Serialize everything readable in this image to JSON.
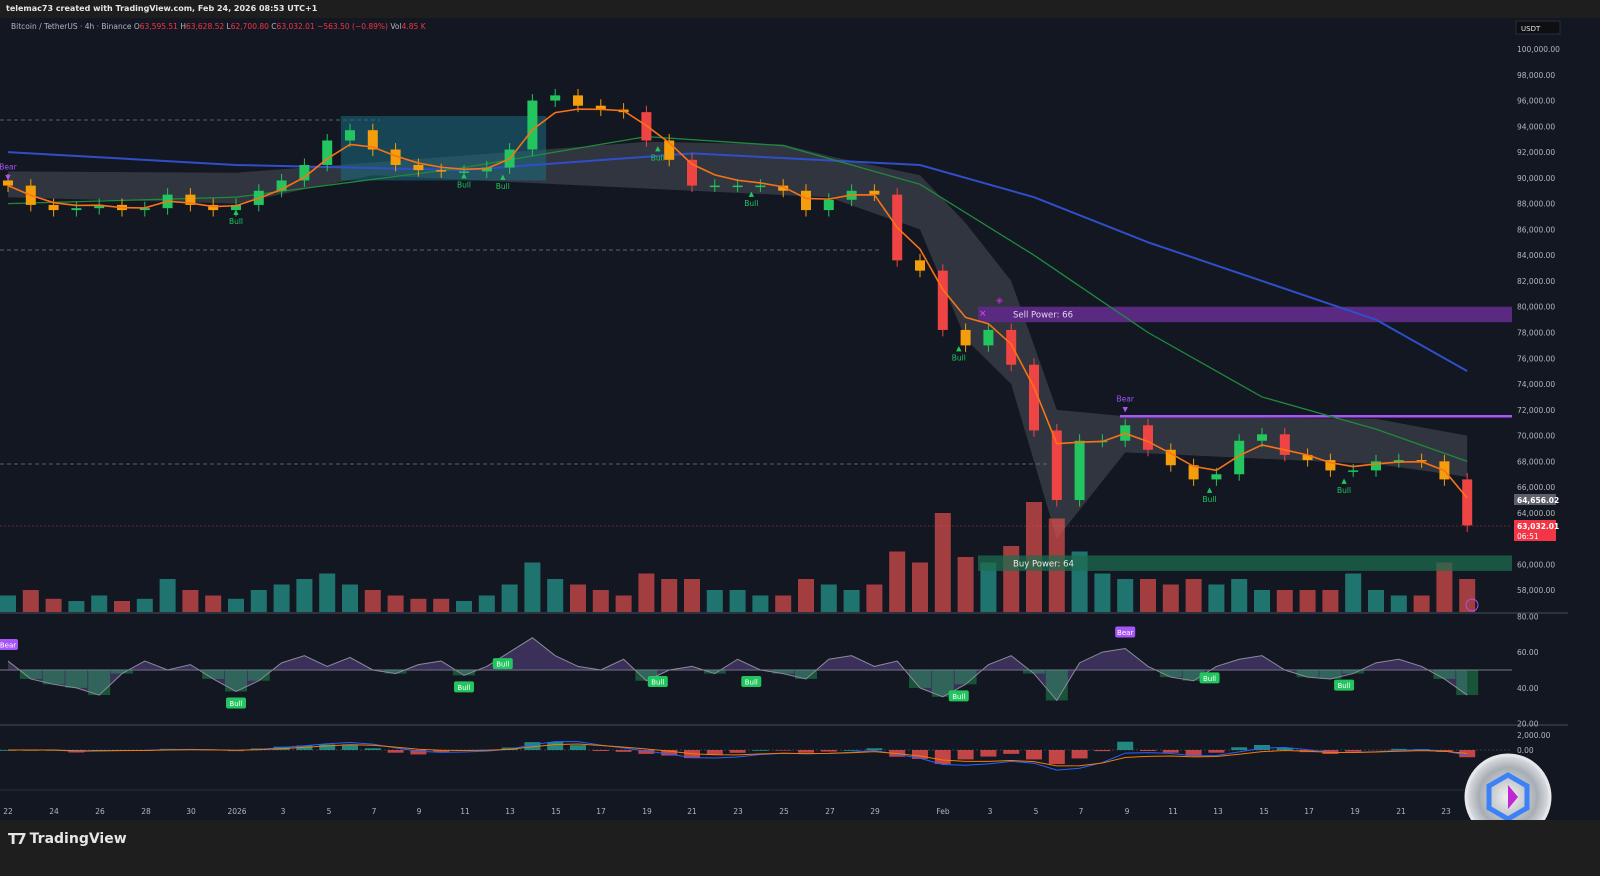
{
  "header": {
    "credit": "telemac73 created with TradingView.com, Feb 24, 2026 08:53 UTC+1"
  },
  "legend": {
    "symbol": "Bitcoin / TetherUS · 4h · Binance",
    "open_label": "O",
    "open": "63,595.51",
    "high_label": "H",
    "high": "63,628.52",
    "low_label": "L",
    "low": "62,700.80",
    "close_label": "C",
    "close": "63,032.01",
    "change": "−563.50 (−0.89%)",
    "vol_label": "Vol",
    "vol": "4.85 K"
  },
  "footer": {
    "brand": "TradingView"
  },
  "colors": {
    "background": "#131722",
    "up": "#26a69a",
    "down": "#ef5350",
    "bull_label": "#22c55e",
    "bear_label": "#a855f7",
    "ma_slow": "#2f4fc9",
    "ma_mid": "#1f8a3c",
    "ema_fast": "#f59e0b",
    "last_price": "#f23645"
  },
  "chart_data": {
    "type": "candlestick",
    "currency_label": "USDT",
    "y_ticks": [
      "100,000.00",
      "98,000.00",
      "96,000.00",
      "94,000.00",
      "92,000.00",
      "90,000.00",
      "88,000.00",
      "86,000.00",
      "84,000.00",
      "82,000.00",
      "80,000.00",
      "78,000.00",
      "76,000.00",
      "74,000.00",
      "72,000.00",
      "70,000.00",
      "68,000.00",
      "66,000.00",
      "64,000.00",
      "60,000.00",
      "58,000.00"
    ],
    "ylim": [
      58000,
      100000
    ],
    "x_ticks": [
      "22",
      "24",
      "26",
      "28",
      "30",
      "2026",
      "3",
      "5",
      "7",
      "9",
      "11",
      "13",
      "15",
      "17",
      "19",
      "21",
      "23",
      "25",
      "27",
      "29",
      "Feb",
      "3",
      "5",
      "7",
      "9",
      "11",
      "13",
      "15",
      "17",
      "19",
      "21",
      "23"
    ],
    "dates": [
      "Dec 22",
      "Dec 23",
      "Dec 24",
      "Dec 25",
      "Dec 26",
      "Dec 27",
      "Dec 28",
      "Dec 29",
      "Dec 30",
      "Dec 31",
      "Jan 1",
      "Jan 2",
      "Jan 3",
      "Jan 4",
      "Jan 5",
      "Jan 6",
      "Jan 7",
      "Jan 8",
      "Jan 9",
      "Jan 10",
      "Jan 11",
      "Jan 12",
      "Jan 13",
      "Jan 14",
      "Jan 15",
      "Jan 16",
      "Jan 17",
      "Jan 18",
      "Jan 19",
      "Jan 20",
      "Jan 21",
      "Jan 22",
      "Jan 23",
      "Jan 24",
      "Jan 25",
      "Jan 26",
      "Jan 27",
      "Jan 28",
      "Jan 29",
      "Jan 30",
      "Jan 31",
      "Feb 1",
      "Feb 2",
      "Feb 3",
      "Feb 4",
      "Feb 5",
      "Feb 6",
      "Feb 7",
      "Feb 8",
      "Feb 9",
      "Feb 10",
      "Feb 11",
      "Feb 12",
      "Feb 13",
      "Feb 14",
      "Feb 15",
      "Feb 16",
      "Feb 17",
      "Feb 18",
      "Feb 19",
      "Feb 20",
      "Feb 21",
      "Feb 22",
      "Feb 23",
      "Feb 24"
    ],
    "close": [
      89400,
      87900,
      87500,
      87650,
      87900,
      87500,
      87650,
      88700,
      87900,
      87500,
      87900,
      89000,
      89800,
      91000,
      92900,
      93700,
      92200,
      91000,
      90600,
      90500,
      90500,
      90800,
      92200,
      96000,
      96400,
      95600,
      95300,
      95100,
      92900,
      91400,
      89400,
      89400,
      89400,
      89400,
      89000,
      87500,
      88300,
      89000,
      88700,
      83600,
      82800,
      78200,
      77000,
      78200,
      75500,
      70400,
      65000,
      69600,
      69600,
      70800,
      68900,
      67700,
      66600,
      67000,
      69600,
      70100,
      68500,
      68100,
      67300,
      67300,
      68000,
      68100,
      68000,
      66600,
      63032
    ],
    "volume_relative": [
      0.15,
      0.2,
      0.12,
      0.1,
      0.15,
      0.1,
      0.12,
      0.3,
      0.2,
      0.15,
      0.12,
      0.2,
      0.25,
      0.3,
      0.35,
      0.25,
      0.2,
      0.15,
      0.12,
      0.12,
      0.1,
      0.15,
      0.25,
      0.45,
      0.3,
      0.25,
      0.2,
      0.15,
      0.35,
      0.3,
      0.3,
      0.2,
      0.2,
      0.15,
      0.15,
      0.3,
      0.25,
      0.2,
      0.25,
      0.55,
      0.45,
      0.9,
      0.5,
      0.45,
      0.6,
      1.0,
      0.85,
      0.55,
      0.35,
      0.3,
      0.3,
      0.25,
      0.3,
      0.25,
      0.3,
      0.2,
      0.2,
      0.2,
      0.2,
      0.35,
      0.2,
      0.15,
      0.15,
      0.45,
      0.3
    ],
    "ma_slow": [
      [
        0,
        92000
      ],
      [
        10,
        91000
      ],
      [
        20,
        90600
      ],
      [
        30,
        91900
      ],
      [
        40,
        91000
      ],
      [
        45,
        88500
      ],
      [
        50,
        85000
      ],
      [
        55,
        82000
      ],
      [
        60,
        79000
      ],
      [
        64,
        75000
      ]
    ],
    "ma_mid": [
      [
        0,
        88000
      ],
      [
        10,
        88500
      ],
      [
        20,
        90800
      ],
      [
        28,
        93200
      ],
      [
        34,
        92500
      ],
      [
        40,
        89500
      ],
      [
        45,
        84000
      ],
      [
        50,
        78000
      ],
      [
        55,
        73000
      ],
      [
        60,
        70500
      ],
      [
        64,
        68000
      ]
    ],
    "zones": {
      "sell_power_label": "Sell Power: 66",
      "buy_power_label": "Buy Power: 64",
      "sell_power_range": [
        78800,
        80000
      ],
      "buy_power_range": [
        59500,
        60700
      ],
      "resistance": 71500
    },
    "signals": [
      {
        "day": 0,
        "label": "Bear",
        "price": 90500
      },
      {
        "day": 10,
        "label": "Bull",
        "price": 86900
      },
      {
        "day": 20,
        "label": "Bull",
        "price": 89700
      },
      {
        "day": 21.7,
        "label": "Bull",
        "price": 89600
      },
      {
        "day": 28.5,
        "label": "Bull",
        "price": 91800
      },
      {
        "day": 32.6,
        "label": "Bull",
        "price": 88300
      },
      {
        "day": 41.7,
        "label": "Bull",
        "price": 76300
      },
      {
        "day": 49,
        "label": "Bear",
        "price": 72500
      },
      {
        "day": 52.7,
        "label": "Bull",
        "price": 65300
      },
      {
        "day": 58.6,
        "label": "Bull",
        "price": 66000
      }
    ],
    "last_price": {
      "previous": "64,656.02",
      "current": "63,032.01",
      "countdown": "06:51"
    },
    "oscillator": {
      "y_ticks": [
        "80.00",
        "60.00",
        "40.00",
        "20.00"
      ],
      "ylim": [
        20,
        80
      ],
      "values": [
        55,
        45,
        42,
        40,
        36,
        48,
        55,
        50,
        53,
        45,
        38,
        44,
        54,
        58,
        52,
        57,
        50,
        48,
        53,
        55,
        47,
        52,
        60,
        68,
        58,
        52,
        50,
        56,
        44,
        50,
        52,
        48,
        56,
        50,
        48,
        45,
        56,
        58,
        52,
        55,
        40,
        35,
        42,
        53,
        58,
        48,
        33,
        54,
        60,
        62,
        52,
        46,
        44,
        52,
        56,
        58,
        50,
        46,
        45,
        48,
        54,
        56,
        52,
        45,
        36
      ],
      "signals": [
        {
          "day": 0,
          "label": "Bear"
        },
        {
          "day": 10,
          "label": "Bull"
        },
        {
          "day": 20,
          "label": "Bull"
        },
        {
          "day": 21.7,
          "label": "Bull"
        },
        {
          "day": 28.5,
          "label": "Bull"
        },
        {
          "day": 32.6,
          "label": "Bull"
        },
        {
          "day": 41.7,
          "label": "Bull"
        },
        {
          "day": 49,
          "label": "Bear"
        },
        {
          "day": 52.7,
          "label": "Bull"
        },
        {
          "day": 58.6,
          "label": "Bull"
        }
      ]
    },
    "macd": {
      "y_ticks": [
        "2,000.00",
        "0.00"
      ]
    }
  }
}
